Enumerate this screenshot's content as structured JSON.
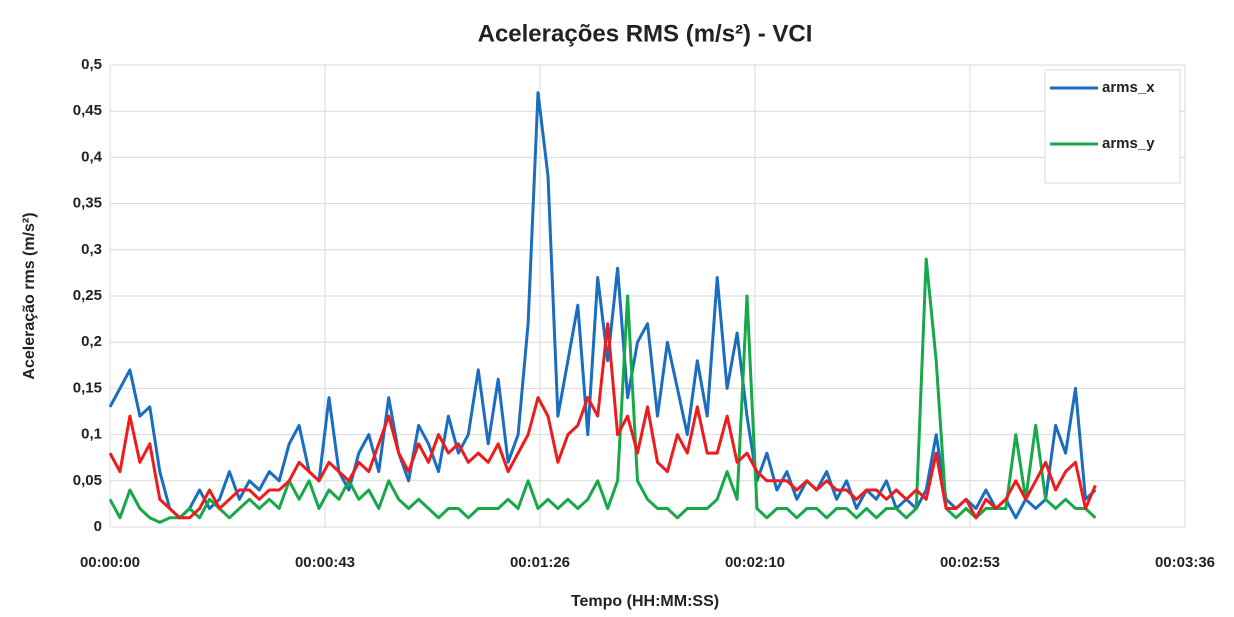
{
  "chart_data": {
    "type": "line",
    "title": "Acelerações RMS (m/s²) - VCI",
    "x_label": "Tempo (HH:MM:SS)",
    "y_label": "Aceleração rms (m/s²)",
    "xlim": [
      0,
      216
    ],
    "xticks": [
      {
        "value": 0,
        "label": "00:00:00"
      },
      {
        "value": 43.2,
        "label": "00:00:43"
      },
      {
        "value": 86.4,
        "label": "00:01:26"
      },
      {
        "value": 129.6,
        "label": "00:02:10"
      },
      {
        "value": 172.8,
        "label": "00:02:53"
      },
      {
        "value": 216,
        "label": "00:03:36"
      }
    ],
    "ylim": [
      0,
      0.5
    ],
    "yticks": [
      0,
      {
        "value": 0.05,
        "label": "0,05"
      },
      {
        "value": 0.1,
        "label": "0,1"
      },
      {
        "value": 0.15,
        "label": "0,15"
      },
      {
        "value": 0.2,
        "label": "0,2"
      },
      {
        "value": 0.25,
        "label": "0,25"
      },
      {
        "value": 0.3,
        "label": "0,3"
      },
      {
        "value": 0.35,
        "label": "0,35"
      },
      {
        "value": 0.4,
        "label": "0,4"
      },
      {
        "value": 0.45,
        "label": "0,45"
      },
      {
        "value": 0.5,
        "label": "0,5"
      }
    ],
    "grid": true,
    "legend": "top-right",
    "x": [
      0,
      2,
      4,
      6,
      8,
      10,
      12,
      14,
      16,
      18,
      20,
      22,
      24,
      26,
      28,
      30,
      32,
      34,
      36,
      38,
      40,
      42,
      44,
      46,
      48,
      50,
      52,
      54,
      56,
      58,
      60,
      62,
      64,
      66,
      68,
      70,
      72,
      74,
      76,
      78,
      80,
      82,
      84,
      86,
      88,
      90,
      92,
      94,
      96,
      98,
      100,
      102,
      104,
      106,
      108,
      110,
      112,
      114,
      116,
      118,
      120,
      122,
      124,
      126,
      128,
      130,
      132,
      134,
      136,
      138,
      140,
      142,
      144,
      146,
      148,
      150,
      152,
      154,
      156,
      158,
      160,
      162,
      164,
      166,
      168,
      170,
      172,
      174,
      176,
      178,
      180,
      182,
      184,
      186,
      188,
      190,
      192,
      194,
      196,
      198
    ],
    "series": [
      {
        "name": "arms_x",
        "color": "#1b6dbf",
        "values": [
          0.13,
          0.15,
          0.17,
          0.12,
          0.13,
          0.06,
          0.02,
          0.01,
          0.02,
          0.04,
          0.02,
          0.03,
          0.06,
          0.03,
          0.05,
          0.04,
          0.06,
          0.05,
          0.09,
          0.11,
          0.06,
          0.05,
          0.14,
          0.06,
          0.04,
          0.08,
          0.1,
          0.06,
          0.14,
          0.08,
          0.05,
          0.11,
          0.09,
          0.06,
          0.12,
          0.08,
          0.1,
          0.17,
          0.09,
          0.16,
          0.07,
          0.1,
          0.22,
          0.47,
          0.38,
          0.12,
          0.18,
          0.24,
          0.1,
          0.27,
          0.18,
          0.28,
          0.14,
          0.2,
          0.22,
          0.12,
          0.2,
          0.15,
          0.1,
          0.18,
          0.12,
          0.27,
          0.15,
          0.21,
          0.12,
          0.05,
          0.08,
          0.04,
          0.06,
          0.03,
          0.05,
          0.04,
          0.06,
          0.03,
          0.05,
          0.02,
          0.04,
          0.03,
          0.05,
          0.02,
          0.03,
          0.02,
          0.04,
          0.1,
          0.03,
          0.02,
          0.03,
          0.02,
          0.04,
          0.02,
          0.03,
          0.01,
          0.03,
          0.02,
          0.03,
          0.11,
          0.08,
          0.15,
          0.03,
          0.04
        ]
      },
      {
        "name": "arms_y",
        "color": "#17a84a",
        "values": [
          0.03,
          0.01,
          0.04,
          0.02,
          0.01,
          0.005,
          0.01,
          0.01,
          0.02,
          0.01,
          0.03,
          0.02,
          0.01,
          0.02,
          0.03,
          0.02,
          0.03,
          0.02,
          0.05,
          0.03,
          0.05,
          0.02,
          0.04,
          0.03,
          0.05,
          0.03,
          0.04,
          0.02,
          0.05,
          0.03,
          0.02,
          0.03,
          0.02,
          0.01,
          0.02,
          0.02,
          0.01,
          0.02,
          0.02,
          0.02,
          0.03,
          0.02,
          0.05,
          0.02,
          0.03,
          0.02,
          0.03,
          0.02,
          0.03,
          0.05,
          0.02,
          0.05,
          0.25,
          0.05,
          0.03,
          0.02,
          0.02,
          0.01,
          0.02,
          0.02,
          0.02,
          0.03,
          0.06,
          0.03,
          0.25,
          0.02,
          0.01,
          0.02,
          0.02,
          0.01,
          0.02,
          0.02,
          0.01,
          0.02,
          0.02,
          0.01,
          0.02,
          0.01,
          0.02,
          0.02,
          0.01,
          0.02,
          0.29,
          0.18,
          0.02,
          0.01,
          0.02,
          0.01,
          0.02,
          0.02,
          0.02,
          0.1,
          0.03,
          0.11,
          0.03,
          0.02,
          0.03,
          0.02,
          0.02,
          0.01
        ]
      },
      {
        "color": "#ee1c1c",
        "values": [
          0.08,
          0.06,
          0.12,
          0.07,
          0.09,
          0.03,
          0.02,
          0.01,
          0.01,
          0.02,
          0.04,
          0.02,
          0.03,
          0.04,
          0.04,
          0.03,
          0.04,
          0.04,
          0.05,
          0.07,
          0.06,
          0.05,
          0.07,
          0.06,
          0.05,
          0.07,
          0.06,
          0.09,
          0.12,
          0.08,
          0.06,
          0.09,
          0.07,
          0.1,
          0.08,
          0.09,
          0.07,
          0.08,
          0.07,
          0.09,
          0.06,
          0.08,
          0.1,
          0.14,
          0.12,
          0.07,
          0.1,
          0.11,
          0.14,
          0.12,
          0.22,
          0.1,
          0.12,
          0.08,
          0.13,
          0.07,
          0.06,
          0.1,
          0.08,
          0.13,
          0.08,
          0.08,
          0.12,
          0.07,
          0.08,
          0.06,
          0.05,
          0.05,
          0.05,
          0.04,
          0.05,
          0.04,
          0.05,
          0.04,
          0.04,
          0.03,
          0.04,
          0.04,
          0.03,
          0.04,
          0.03,
          0.04,
          0.03,
          0.08,
          0.02,
          0.02,
          0.03,
          0.01,
          0.03,
          0.02,
          0.03,
          0.05,
          0.03,
          0.05,
          0.07,
          0.04,
          0.06,
          0.07,
          0.02,
          0.045
        ]
      }
    ]
  }
}
